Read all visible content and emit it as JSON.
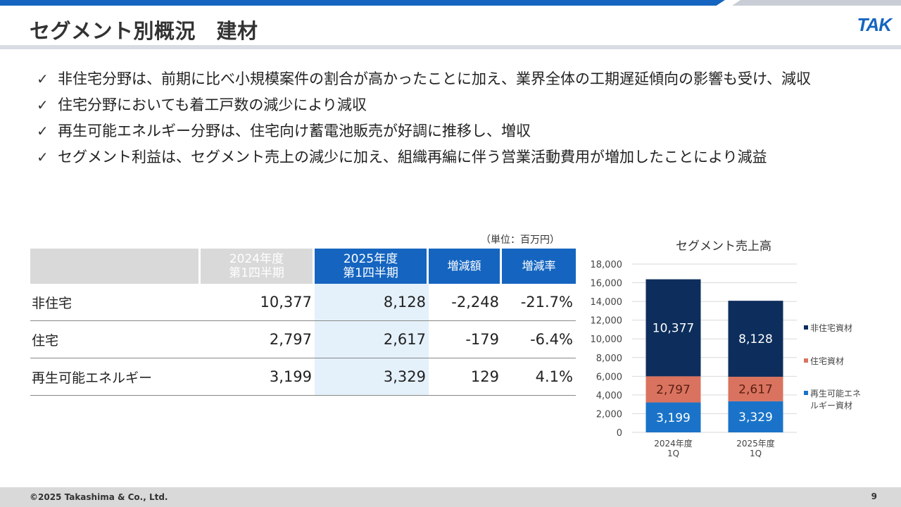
{
  "header": {
    "title": "セグメント別概況　建材",
    "logo_text": "TAK",
    "accent_color": "#1565c0"
  },
  "bullets": [
    "非住宅分野は、前期に比べ小規模案件の割合が高かったことに加え、業界全体の工期遅延傾向の影響も受け、減収",
    "住宅分野においても着工戸数の減少により減収",
    "再生可能エネルギー分野は、住宅向け蓄電池販売が好調に推移し、増収",
    "セグメント利益は、セグメント売上の減少に加え、組織再編に伴う営業活動費用が増加したことにより減益"
  ],
  "check_icon": "✓",
  "table": {
    "unit_note": "（単位：百万円）",
    "headers": {
      "col2024_line1": "2024年度",
      "col2024_line2": "第1四半期",
      "col2025_line1": "2025年度",
      "col2025_line2": "第1四半期",
      "diff": "増減額",
      "rate": "増減率"
    },
    "rows": [
      {
        "label": "非住宅",
        "v2024": "10,377",
        "v2025": "8,128",
        "diff": "-2,248",
        "rate": "-21.7%"
      },
      {
        "label": "住宅",
        "v2024": "2,797",
        "v2025": "2,617",
        "diff": "-179",
        "rate": "-6.4%"
      },
      {
        "label": "再生可能エネルギー",
        "v2024": "3,199",
        "v2025": "3,329",
        "diff": "129",
        "rate": "4.1%"
      }
    ]
  },
  "chart_data": {
    "type": "bar",
    "stacked": true,
    "title": "セグメント売上高",
    "categories": [
      [
        "2024年度",
        "1Q"
      ],
      [
        "2025年度",
        "1Q"
      ]
    ],
    "series": [
      {
        "name": "再生可能エネルギー資材",
        "legend_lines": [
          "再生可能エネ",
          "ルギー資材"
        ],
        "color": "#1a73c8",
        "values": [
          3199,
          3329
        ],
        "labels": [
          "3,199",
          "3,329"
        ]
      },
      {
        "name": "住宅資材",
        "legend_lines": [
          "住宅資材"
        ],
        "color": "#d9735f",
        "values": [
          2797,
          2617
        ],
        "labels": [
          "2,797",
          "2,617"
        ]
      },
      {
        "name": "非住宅資材",
        "legend_lines": [
          "非住宅資材"
        ],
        "color": "#0d2e5c",
        "values": [
          10377,
          8128
        ],
        "labels": [
          "10,377",
          "8,128"
        ]
      }
    ],
    "ylim": [
      0,
      18000
    ],
    "yticks": [
      "0",
      "2,000",
      "4,000",
      "6,000",
      "8,000",
      "10,000",
      "12,000",
      "14,000",
      "16,000",
      "18,000"
    ],
    "grid": true,
    "legend_position": "right"
  },
  "footer": {
    "copyright": "©2025 Takashima & Co., Ltd.",
    "page_number": "9"
  }
}
